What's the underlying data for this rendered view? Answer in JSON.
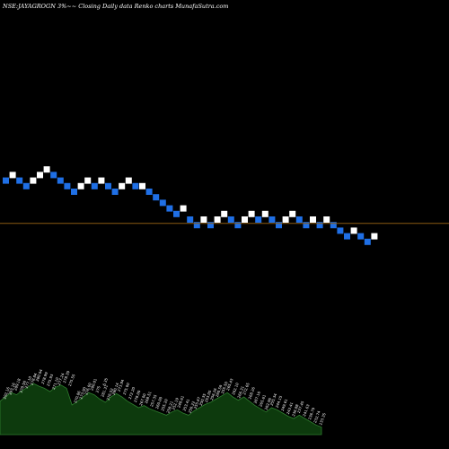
{
  "chart_data": {
    "type": "renko",
    "title": "NSE:JAYAGROGN 3%~~ Closing Daily data Renko charts MunafaSutra.com",
    "colors": {
      "background": "#000000",
      "up_brick": "#ffffff",
      "down_brick": "#1f6fe5",
      "reference_line": "#8a5a12",
      "volume_fill": "#0d3a0d",
      "volume_edge": "#2e7d2e",
      "text": "#ffffff"
    },
    "grid": false,
    "bricks": [
      {
        "level": 12,
        "dir": "down"
      },
      {
        "level": 13,
        "dir": "up"
      },
      {
        "level": 12,
        "dir": "down"
      },
      {
        "level": 11,
        "dir": "down"
      },
      {
        "level": 12,
        "dir": "up"
      },
      {
        "level": 13,
        "dir": "up"
      },
      {
        "level": 14,
        "dir": "up"
      },
      {
        "level": 13,
        "dir": "down"
      },
      {
        "level": 12,
        "dir": "down"
      },
      {
        "level": 11,
        "dir": "down"
      },
      {
        "level": 10,
        "dir": "down"
      },
      {
        "level": 11,
        "dir": "up"
      },
      {
        "level": 12,
        "dir": "up"
      },
      {
        "level": 11,
        "dir": "down"
      },
      {
        "level": 12,
        "dir": "up"
      },
      {
        "level": 11,
        "dir": "down"
      },
      {
        "level": 10,
        "dir": "down"
      },
      {
        "level": 11,
        "dir": "up"
      },
      {
        "level": 12,
        "dir": "up"
      },
      {
        "level": 11,
        "dir": "down"
      },
      {
        "level": 11,
        "dir": "up"
      },
      {
        "level": 10,
        "dir": "down"
      },
      {
        "level": 9,
        "dir": "down"
      },
      {
        "level": 8,
        "dir": "down"
      },
      {
        "level": 7,
        "dir": "down"
      },
      {
        "level": 6,
        "dir": "down"
      },
      {
        "level": 7,
        "dir": "up"
      },
      {
        "level": 5,
        "dir": "down"
      },
      {
        "level": 4,
        "dir": "down"
      },
      {
        "level": 5,
        "dir": "up"
      },
      {
        "level": 4,
        "dir": "down"
      },
      {
        "level": 5,
        "dir": "up"
      },
      {
        "level": 6,
        "dir": "up"
      },
      {
        "level": 5,
        "dir": "down"
      },
      {
        "level": 4,
        "dir": "down"
      },
      {
        "level": 5,
        "dir": "up"
      },
      {
        "level": 6,
        "dir": "up"
      },
      {
        "level": 5,
        "dir": "down"
      },
      {
        "level": 6,
        "dir": "up"
      },
      {
        "level": 5,
        "dir": "down"
      },
      {
        "level": 4,
        "dir": "down"
      },
      {
        "level": 5,
        "dir": "up"
      },
      {
        "level": 6,
        "dir": "up"
      },
      {
        "level": 5,
        "dir": "down"
      },
      {
        "level": 4,
        "dir": "down"
      },
      {
        "level": 5,
        "dir": "up"
      },
      {
        "level": 4,
        "dir": "down"
      },
      {
        "level": 5,
        "dir": "up"
      },
      {
        "level": 4,
        "dir": "down"
      },
      {
        "level": 3,
        "dir": "down"
      },
      {
        "level": 2,
        "dir": "down"
      },
      {
        "level": 3,
        "dir": "up"
      },
      {
        "level": 2,
        "dir": "down"
      },
      {
        "level": 1,
        "dir": "down"
      },
      {
        "level": 2,
        "dir": "up"
      }
    ],
    "reference_level": 4.3,
    "volume_labels": [
      "292.16",
      "293.16",
      "289.18",
      "278.56",
      "277.10",
      "278.84",
      "280.04",
      "278.99",
      "275.93",
      "271.10",
      "277.24",
      "278.39",
      "275.55",
      "270.86",
      "273.90",
      "276.00",
      "280.01",
      "275",
      "281.31",
      "276.52",
      "280.14",
      "273.94",
      "275.00",
      "272.20",
      "278.00",
      "267.00",
      "268.51",
      "257.35",
      "260.00",
      "255.20",
      "258.21",
      "252.19",
      "248.61",
      "253.41",
      "250.22",
      "255.67",
      "250.35",
      "253.05",
      "256.26",
      "260.59",
      "255.50",
      "265.43",
      "262.10",
      "266.31",
      "272.65",
      "268.26",
      "267.16",
      "265.61",
      "262.96",
      "255.34",
      "244.15",
      "249.61",
      "243.41",
      "236.88",
      "237.45",
      "241.63",
      "236.79",
      "232.74",
      "233.35"
    ],
    "volume_note": "6.35",
    "volumes": [
      0.62,
      0.7,
      0.78,
      0.74,
      0.82,
      0.88,
      0.95,
      0.9,
      0.86,
      0.8,
      0.88,
      0.92,
      0.86,
      0.55,
      0.62,
      0.7,
      0.78,
      0.74,
      0.66,
      0.6,
      0.7,
      0.76,
      0.7,
      0.62,
      0.56,
      0.5,
      0.54,
      0.48,
      0.44,
      0.4,
      0.36,
      0.42,
      0.46,
      0.4,
      0.36,
      0.44,
      0.5,
      0.56,
      0.6,
      0.66,
      0.72,
      0.78,
      0.7,
      0.64,
      0.7,
      0.62,
      0.54,
      0.48,
      0.42,
      0.5,
      0.46,
      0.4,
      0.34,
      0.3,
      0.36,
      0.3,
      0.24,
      0.18,
      0.14
    ]
  }
}
